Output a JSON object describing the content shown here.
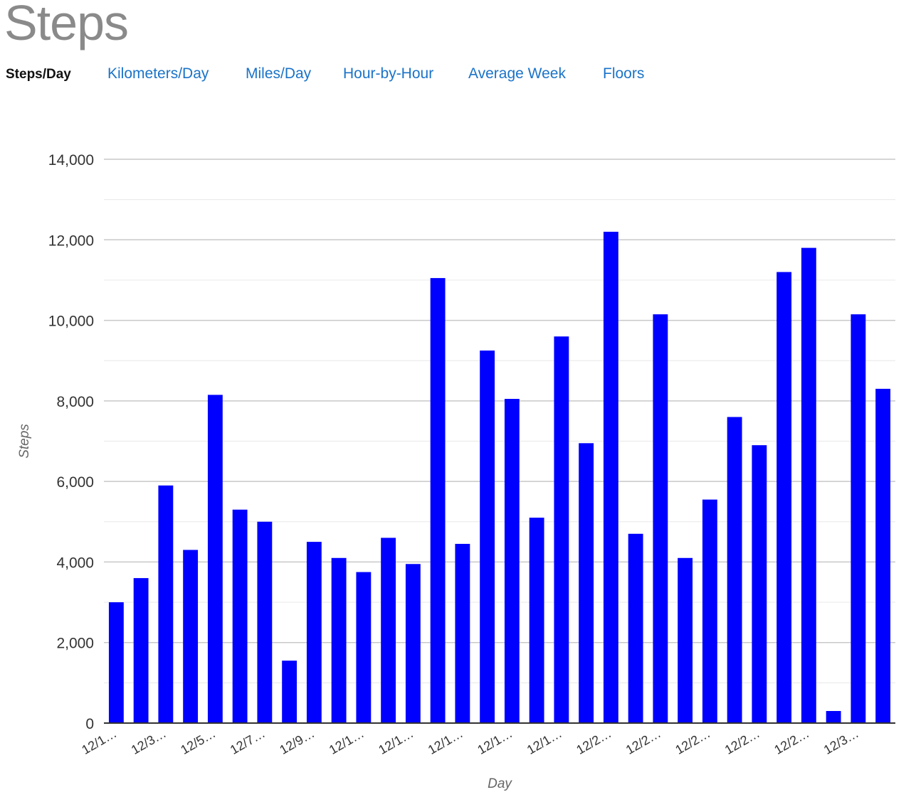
{
  "page": {
    "title": "Steps"
  },
  "tabs": [
    {
      "label": "Steps/Day",
      "active": true
    },
    {
      "label": "Kilometers/Day",
      "active": false
    },
    {
      "label": "Miles/Day",
      "active": false
    },
    {
      "label": "Hour-by-Hour",
      "active": false
    },
    {
      "label": "Average Week",
      "active": false
    },
    {
      "label": "Floors",
      "active": false
    }
  ],
  "colors": {
    "bar": "#0000ff",
    "link": "#1a73c8",
    "title": "#8a8a8a"
  },
  "chart_data": {
    "type": "bar",
    "xlabel": "Day",
    "ylabel": "Steps",
    "ylim": [
      0,
      14000
    ],
    "yticks": [
      0,
      2000,
      4000,
      6000,
      8000,
      10000,
      12000,
      14000
    ],
    "ytick_labels": [
      "0",
      "2,000",
      "4,000",
      "6,000",
      "8,000",
      "10,000",
      "12,000",
      "14,000"
    ],
    "grid": true,
    "minor_grid": true,
    "legend": "none",
    "tick_labels": [
      "12/1…",
      "12/3…",
      "12/5…",
      "12/7…",
      "12/9…",
      "12/1…",
      "12/1…",
      "12/1…",
      "12/1…",
      "12/1…",
      "12/2…",
      "12/2…",
      "12/2…",
      "12/2…",
      "12/2…",
      "12/3…"
    ],
    "series": [
      {
        "values": [
          3000,
          3600,
          5900,
          4300,
          8150,
          5300,
          5000,
          1550,
          4500,
          4100,
          3750,
          4600,
          3950,
          11050,
          4450,
          9250,
          8050,
          5100,
          9600,
          6950,
          12200,
          4700,
          10150,
          4100,
          5550,
          7600,
          6900,
          11200,
          11800,
          300,
          10150,
          8300
        ]
      }
    ]
  }
}
